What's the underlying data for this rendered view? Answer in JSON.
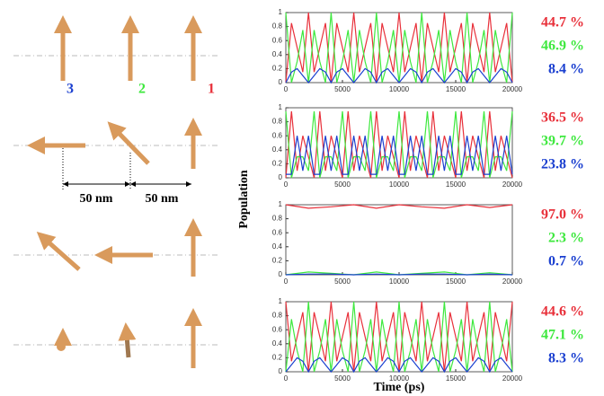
{
  "figure": {
    "ylabel": "Population",
    "xlabel": "Time (ps)",
    "illustration": {
      "labels": [
        "3",
        "2",
        "1"
      ],
      "distances": [
        "50 nm",
        "50 nm"
      ]
    }
  },
  "chart_data": [
    {
      "type": "line",
      "xlim": [
        0,
        20000
      ],
      "ylim": [
        0,
        1
      ],
      "xticks": [
        0,
        5000,
        10000,
        15000,
        20000
      ],
      "yticks": [
        0,
        0.2,
        0.4,
        0.6,
        0.8,
        1
      ],
      "x": [
        0,
        500,
        1000,
        1500,
        2000,
        2500,
        3000,
        3500,
        4000,
        4500,
        5000,
        5500,
        6000,
        6500,
        7000,
        7500,
        8000,
        8500,
        9000,
        9500,
        10000,
        10500,
        11000,
        11500,
        12000,
        12500,
        13000,
        13500,
        14000,
        14500,
        15000,
        15500,
        16000,
        16500,
        17000,
        17500,
        18000,
        18500,
        19000,
        19500,
        20000
      ],
      "series": [
        {
          "color": "#e8303a",
          "values": [
            0,
            0.85,
            0.5,
            0.15,
            1,
            0.15,
            0.5,
            0.85,
            0,
            0.85,
            0.5,
            0.15,
            1,
            0.15,
            0.5,
            0.85,
            0,
            0.85,
            0.5,
            0.15,
            1,
            0.15,
            0.5,
            0.85,
            0,
            0.85,
            0.5,
            0.15,
            1,
            0.15,
            0.5,
            0.85,
            0,
            0.85,
            0.5,
            0.15,
            1,
            0.15,
            0.5,
            0.85,
            0
          ]
        },
        {
          "color": "#3ee83e",
          "values": [
            1,
            0,
            0.3,
            0.75,
            0,
            0.75,
            0.3,
            0,
            1,
            0,
            0.3,
            0.75,
            0,
            0.75,
            0.3,
            0,
            1,
            0,
            0.3,
            0.75,
            0,
            0.75,
            0.3,
            0,
            1,
            0,
            0.3,
            0.75,
            0,
            0.75,
            0.3,
            0,
            1,
            0,
            0.3,
            0.75,
            0,
            0.75,
            0.3,
            0,
            1
          ]
        },
        {
          "color": "#1a3fd0",
          "values": [
            0,
            0.15,
            0.2,
            0.1,
            0,
            0.1,
            0.2,
            0.15,
            0,
            0.15,
            0.2,
            0.1,
            0,
            0.1,
            0.2,
            0.15,
            0,
            0.15,
            0.2,
            0.1,
            0,
            0.1,
            0.2,
            0.15,
            0,
            0.15,
            0.2,
            0.1,
            0,
            0.1,
            0.2,
            0.15,
            0,
            0.15,
            0.2,
            0.1,
            0,
            0.1,
            0.2,
            0.15,
            0
          ]
        }
      ],
      "annotations": [
        "44.7 %",
        "46.9 %",
        "8.4 %"
      ]
    },
    {
      "type": "line",
      "xlim": [
        0,
        20000
      ],
      "ylim": [
        0,
        1
      ],
      "xticks": [
        0,
        5000,
        10000,
        15000,
        20000
      ],
      "yticks": [
        0,
        0.2,
        0.4,
        0.6,
        0.8,
        1
      ],
      "x": [
        0,
        500,
        1000,
        1500,
        2000,
        2500,
        3000,
        3500,
        4000,
        4500,
        5000,
        5500,
        6000,
        6500,
        7000,
        7500,
        8000,
        8500,
        9000,
        9500,
        10000,
        10500,
        11000,
        11500,
        12000,
        12500,
        13000,
        13500,
        14000,
        14500,
        15000,
        15500,
        16000,
        16500,
        17000,
        17500,
        18000,
        18500,
        19000,
        19500,
        20000
      ],
      "series": [
        {
          "color": "#e8303a",
          "values": [
            0,
            0.95,
            0.1,
            0.6,
            0.3,
            0,
            0.95,
            0.1,
            0.6,
            0.3,
            0,
            0.95,
            0.1,
            0.6,
            0.3,
            0,
            0.95,
            0.1,
            0.6,
            0.3,
            0,
            0.95,
            0.1,
            0.6,
            0.3,
            0,
            0.95,
            0.1,
            0.6,
            0.3,
            0,
            0.95,
            0.1,
            0.6,
            0.3,
            0,
            0.95,
            0.1,
            0.6,
            0.3,
            0
          ]
        },
        {
          "color": "#3ee83e",
          "values": [
            0.95,
            0,
            0.3,
            0.3,
            0.1,
            0.95,
            0,
            0.3,
            0.3,
            0.1,
            0.95,
            0,
            0.3,
            0.3,
            0.1,
            0.95,
            0,
            0.3,
            0.3,
            0.1,
            0.95,
            0,
            0.3,
            0.3,
            0.1,
            0.95,
            0,
            0.3,
            0.3,
            0.1,
            0.95,
            0,
            0.3,
            0.3,
            0.1,
            0.95,
            0,
            0.3,
            0.3,
            0.1,
            0.95
          ]
        },
        {
          "color": "#1a3fd0",
          "values": [
            0.05,
            0.05,
            0.6,
            0.1,
            0.6,
            0.05,
            0.05,
            0.6,
            0.1,
            0.6,
            0.05,
            0.05,
            0.6,
            0.1,
            0.6,
            0.05,
            0.05,
            0.6,
            0.1,
            0.6,
            0.05,
            0.05,
            0.6,
            0.1,
            0.6,
            0.05,
            0.05,
            0.6,
            0.1,
            0.6,
            0.05,
            0.05,
            0.6,
            0.1,
            0.6,
            0.05,
            0.05,
            0.6,
            0.1,
            0.6,
            0.05
          ]
        }
      ],
      "annotations": [
        "36.5 %",
        "39.7 %",
        "23.8 %"
      ]
    },
    {
      "type": "line",
      "xlim": [
        0,
        20000
      ],
      "ylim": [
        0,
        1
      ],
      "xticks": [
        0,
        5000,
        10000,
        15000,
        20000
      ],
      "yticks": [
        0,
        0.2,
        0.4,
        0.6,
        0.8,
        1
      ],
      "x": [
        0,
        2000,
        4000,
        6000,
        8000,
        10000,
        12000,
        14000,
        16000,
        18000,
        20000
      ],
      "series": [
        {
          "color": "#e8303a",
          "values": [
            1,
            0.95,
            0.97,
            1,
            0.95,
            1,
            0.97,
            0.95,
            1,
            0.96,
            1
          ]
        },
        {
          "color": "#3ee83e",
          "values": [
            0,
            0.04,
            0.02,
            0,
            0.04,
            0,
            0.02,
            0.04,
            0,
            0.03,
            0
          ]
        },
        {
          "color": "#1a3fd0",
          "values": [
            0,
            0.01,
            0.01,
            0,
            0.01,
            0,
            0.01,
            0.01,
            0,
            0.01,
            0
          ]
        }
      ],
      "annotations": [
        "97.0 %",
        "2.3 %",
        "0.7 %"
      ]
    },
    {
      "type": "line",
      "xlim": [
        0,
        20000
      ],
      "ylim": [
        0,
        1
      ],
      "xticks": [
        0,
        5000,
        10000,
        15000,
        20000
      ],
      "yticks": [
        0,
        0.2,
        0.4,
        0.6,
        0.8,
        1
      ],
      "x": [
        0,
        500,
        1000,
        1500,
        2000,
        2500,
        3000,
        3500,
        4000,
        4500,
        5000,
        5500,
        6000,
        6500,
        7000,
        7500,
        8000,
        8500,
        9000,
        9500,
        10000,
        10500,
        11000,
        11500,
        12000,
        12500,
        13000,
        13500,
        14000,
        14500,
        15000,
        15500,
        16000,
        16500,
        17000,
        17500,
        18000,
        18500,
        19000,
        19500,
        20000
      ],
      "series": [
        {
          "color": "#e8303a",
          "values": [
            1,
            0.15,
            0.5,
            0.85,
            0,
            0.85,
            0.5,
            0.15,
            1,
            0.15,
            0.5,
            0.85,
            0,
            0.85,
            0.5,
            0.15,
            1,
            0.15,
            0.5,
            0.85,
            0,
            0.85,
            0.5,
            0.15,
            1,
            0.15,
            0.5,
            0.85,
            0,
            0.85,
            0.5,
            0.15,
            1,
            0.15,
            0.5,
            0.85,
            0,
            0.85,
            0.5,
            0.15,
            1
          ]
        },
        {
          "color": "#3ee83e",
          "values": [
            0,
            0.75,
            0.3,
            0,
            1,
            0,
            0.3,
            0.75,
            0,
            0.75,
            0.3,
            0,
            1,
            0,
            0.3,
            0.75,
            0,
            0.75,
            0.3,
            0,
            1,
            0,
            0.3,
            0.75,
            0,
            0.75,
            0.3,
            0,
            1,
            0,
            0.3,
            0.75,
            0,
            0.75,
            0.3,
            0,
            1,
            0,
            0.3,
            0.75,
            0
          ]
        },
        {
          "color": "#1a3fd0",
          "values": [
            0,
            0.1,
            0.2,
            0.15,
            0,
            0.15,
            0.2,
            0.1,
            0,
            0.1,
            0.2,
            0.15,
            0,
            0.15,
            0.2,
            0.1,
            0,
            0.1,
            0.2,
            0.15,
            0,
            0.15,
            0.2,
            0.1,
            0,
            0.1,
            0.2,
            0.15,
            0,
            0.15,
            0.2,
            0.1,
            0,
            0.1,
            0.2,
            0.15,
            0,
            0.15,
            0.2,
            0.1,
            0
          ]
        }
      ],
      "annotations": [
        "44.6 %",
        "47.1 %",
        "8.3 %"
      ]
    }
  ]
}
